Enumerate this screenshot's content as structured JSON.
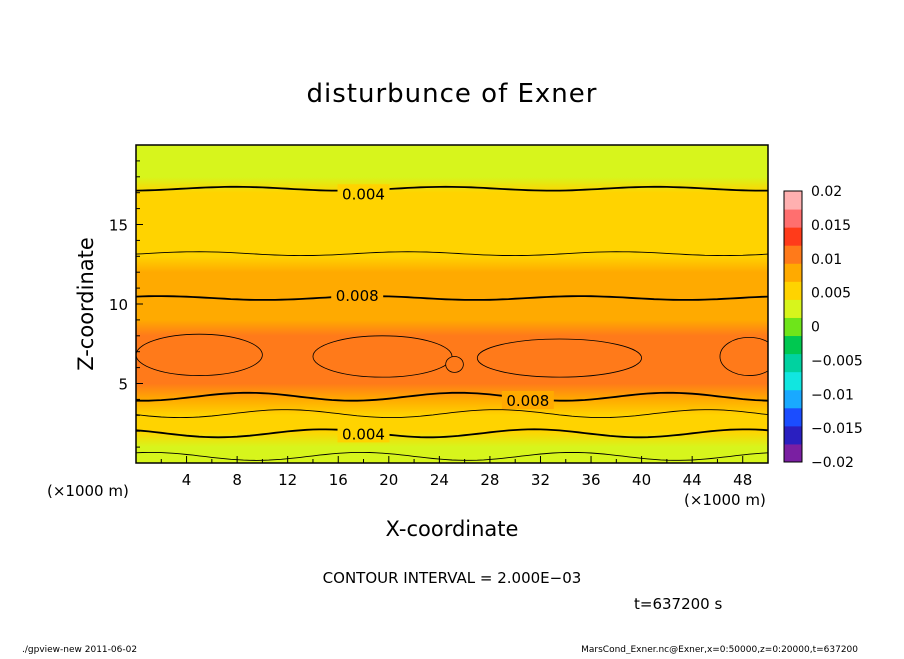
{
  "chart_data": {
    "type": "heatmap",
    "title": "disturbunce of Exner",
    "xlabel": "X-coordinate",
    "ylabel": "Z-coordinate",
    "x_unit": "(×1000 m)",
    "y_unit": "(×1000 m)",
    "xlim": [
      0,
      50
    ],
    "ylim": [
      0,
      20
    ],
    "x_ticks": [
      4,
      8,
      12,
      16,
      20,
      24,
      28,
      32,
      36,
      40,
      44,
      48
    ],
    "y_ticks": [
      5,
      10,
      15
    ],
    "colorbar_ticks": [
      0.02,
      0.015,
      0.01,
      0.005,
      0,
      -0.005,
      -0.01,
      -0.015,
      -0.02
    ],
    "colorbar_tick_labels": [
      "0.02",
      "0.015",
      "0.01",
      "0.005",
      "0",
      "−0.005",
      "−0.01",
      "−0.015",
      "−0.02"
    ],
    "colorbar_range": [
      -0.02,
      0.02
    ],
    "contour_interval_text": "CONTOUR INTERVAL = 2.000E−03",
    "contour_levels": [
      0,
      0.002,
      0.004,
      0.006,
      0.008,
      0.01
    ],
    "contour_labels": [
      {
        "text": "0.004",
        "x": 18,
        "z": 16.9
      },
      {
        "text": "0.008",
        "x": 17.5,
        "z": 10.5
      },
      {
        "text": "0.008",
        "x": 31,
        "z": 3.9
      },
      {
        "text": "0.004",
        "x": 18,
        "z": 1.8
      }
    ],
    "profile_z": [
      0,
      1,
      2,
      3,
      4,
      5,
      6,
      7,
      8,
      9,
      10,
      11,
      12,
      13,
      14,
      15,
      16,
      17,
      18,
      19,
      20
    ],
    "profile_value": [
      0.0015,
      0.0027,
      0.0042,
      0.0058,
      0.0077,
      0.0095,
      0.0106,
      0.0108,
      0.0102,
      0.0092,
      0.0083,
      0.0075,
      0.0068,
      0.0061,
      0.0055,
      0.005,
      0.0046,
      0.0041,
      0.0037,
      0.0034,
      0.0032
    ],
    "maxima": [
      {
        "x_center": 5,
        "z_center": 6.8,
        "half_width_x": 5,
        "half_width_z": 1.3
      },
      {
        "x_center": 19.5,
        "z_center": 6.7,
        "half_width_x": 5.5,
        "half_width_z": 1.3
      },
      {
        "x_center": 25.2,
        "z_center": 6.2,
        "half_width_x": 0.7,
        "half_width_z": 0.5
      },
      {
        "x_center": 33.5,
        "z_center": 6.6,
        "half_width_x": 6.5,
        "half_width_z": 1.2
      },
      {
        "x_center": 48.5,
        "z_center": 6.7,
        "half_width_x": 2.3,
        "half_width_z": 1.2
      }
    ]
  },
  "annotations": {
    "time": "t=637200 s",
    "footer_left": "./gpview-new   2011-06-02",
    "footer_right": "MarsCond_Exner.nc@Exner,x=0:50000,z=0:20000,t=637200"
  },
  "colors": {
    "colormap": [
      "#7a1fa2",
      "#2a1fc0",
      "#1b4dff",
      "#19a9ff",
      "#11e6e0",
      "#00d2a0",
      "#00c850",
      "#6ee51a",
      "#d7f51c",
      "#ffd300",
      "#ffaa00",
      "#ff7a1a",
      "#ff3b1a",
      "#ff6f6f",
      "#ffb0b0"
    ]
  }
}
